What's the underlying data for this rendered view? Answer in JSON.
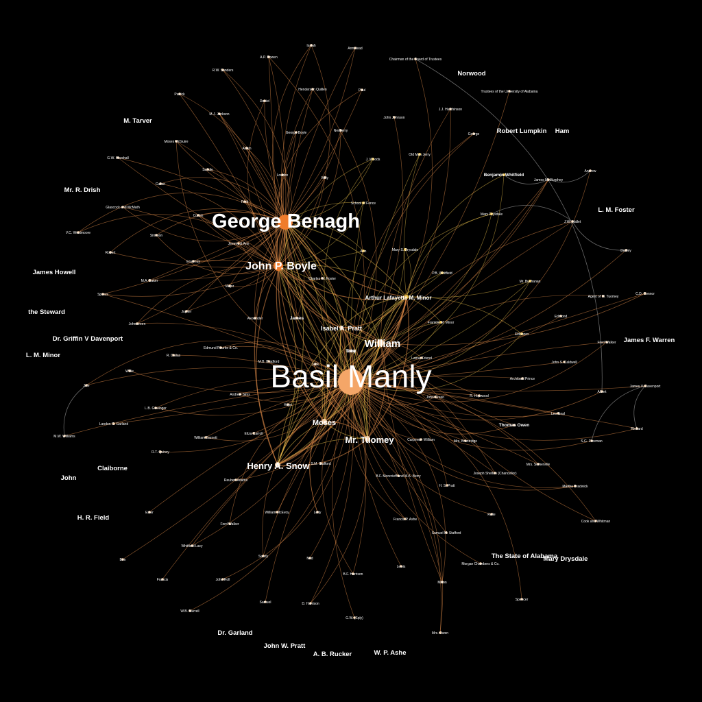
{
  "colors": {
    "background": "#000000",
    "hub": "#f4a668",
    "hub_strong": "#f07c2c",
    "gold": "#f0c24a",
    "edge_orange": "#e8904a",
    "edge_gold": "#e8c04a",
    "edge_gray": "#bbbbbb",
    "node_pale": "#f6d5b0",
    "node_gray": "#cccccc"
  },
  "hubs": [
    {
      "id": "basil_manly",
      "label": "Basil Manly",
      "tier": "xl"
    },
    {
      "id": "george_benagh",
      "label": "George Benagh",
      "tier": "l"
    },
    {
      "id": "john_p_boyle",
      "label": "John P. Boyle",
      "tier": "m"
    },
    {
      "id": "henry_a_snow",
      "label": "Henry A. Snow",
      "tier": "s"
    },
    {
      "id": "mr_tuomey",
      "label": "Mr. Tuomey",
      "tier": "s"
    },
    {
      "id": "william",
      "label": "William",
      "tier": "s"
    },
    {
      "id": "moses",
      "label": "Moses",
      "tier": "xs"
    },
    {
      "id": "isabel_a_pratt",
      "label": "Isabel A. Pratt",
      "tier": "xs"
    },
    {
      "id": "arthur_lafayette_m_minor",
      "label": "Arthur Lafayette M. Minor",
      "tier": "xs"
    }
  ],
  "nodes": [
    {
      "label": "Isaiah"
    },
    {
      "label": "Armstead"
    },
    {
      "label": "Chairman of the Board of Trustees"
    },
    {
      "label": "A.P. Bowen"
    },
    {
      "label": "R.W. Sanders"
    },
    {
      "label": "Patrick"
    },
    {
      "label": "Henderson Quillen"
    },
    {
      "label": "Paul"
    },
    {
      "label": "Daniel"
    },
    {
      "label": "M.J. Jackson"
    },
    {
      "label": "J.J. Hutchinson"
    },
    {
      "label": "John Johnson"
    },
    {
      "label": "George"
    },
    {
      "label": "George Boyle"
    },
    {
      "label": "Nedberry"
    },
    {
      "label": "Moses McGuire"
    },
    {
      "label": "Adam"
    },
    {
      "label": "G.W. Marshall"
    },
    {
      "label": "J. Woods"
    },
    {
      "label": "Old Man Jerry"
    },
    {
      "label": "Sandie"
    },
    {
      "label": "Loudon"
    },
    {
      "label": "Milly"
    },
    {
      "label": "Cullen"
    },
    {
      "label": "School of Fence"
    },
    {
      "label": "Fred"
    },
    {
      "label": "Glascock and McMath"
    },
    {
      "label": "Corbin"
    },
    {
      "label": "V.C. Westmoore"
    },
    {
      "label": "Simmon"
    },
    {
      "label": "Jemmy & Ann"
    },
    {
      "label": "Robert"
    },
    {
      "label": "Erasmus"
    },
    {
      "label": "Ann"
    },
    {
      "label": "M.A. Baker"
    },
    {
      "label": "Major"
    },
    {
      "label": "Spears"
    },
    {
      "label": "Charles W. Foster"
    },
    {
      "label": "Jupiter"
    },
    {
      "label": "Johnstreen"
    },
    {
      "label": "Mary Drysdale"
    },
    {
      "label": "Mary S. Drysdale"
    },
    {
      "label": "J.W. Mallet"
    },
    {
      "label": "Dudley"
    },
    {
      "label": "Benjamin Whitfield"
    },
    {
      "label": "James McMurphey"
    },
    {
      "label": "Andrew"
    },
    {
      "label": "P.B. Whitfield"
    },
    {
      "label": "Mr. Buchanan"
    },
    {
      "label": "Agent of M. Tuomey"
    },
    {
      "label": "C.D. Connor"
    },
    {
      "label": "Franklin M. Minor"
    },
    {
      "label": "Edmond"
    },
    {
      "label": "Eldoboro"
    },
    {
      "label": "Fred Walker"
    },
    {
      "label": "Alexander"
    },
    {
      "label": "James"
    },
    {
      "label": "Edmund Rourke & Co."
    },
    {
      "label": "M.B. Bradford"
    },
    {
      "label": "Jack"
    },
    {
      "label": "Lamar Friend"
    },
    {
      "label": "John S. Caldwell"
    },
    {
      "label": "Archibald Prince"
    },
    {
      "label": "Jule"
    },
    {
      "label": "Willie"
    },
    {
      "label": "R. Dallas"
    },
    {
      "label": "Andrew Sims"
    },
    {
      "label": "Hope"
    },
    {
      "label": "John Green"
    },
    {
      "label": "L.B. Gewinger"
    },
    {
      "label": "R. Hopwood"
    },
    {
      "label": "James V. Davenport"
    },
    {
      "label": "Richard"
    },
    {
      "label": "Landon C. Garland"
    },
    {
      "label": "M.W. Williams"
    },
    {
      "label": "William Barnett"
    },
    {
      "label": "Eliza Carroll"
    },
    {
      "label": "Carpenter William"
    },
    {
      "label": "Mrs. Brantridge"
    },
    {
      "label": "S.G. Freeman"
    },
    {
      "label": "R.T. Quincy"
    },
    {
      "label": "Mrs. Somerville"
    },
    {
      "label": "Reuben Adams"
    },
    {
      "label": "S.M. Stafford"
    },
    {
      "label": "B.F. Moncrieff and M.A. Berry"
    },
    {
      "label": "Joseph Shelton (Chancellor)"
    },
    {
      "label": "H. S. Pratt"
    },
    {
      "label": "Martha Bradwick"
    },
    {
      "label": "Ester"
    },
    {
      "label": "William McEvoy"
    },
    {
      "label": "Letty"
    },
    {
      "label": "Ralie"
    },
    {
      "label": "Ford Walker"
    },
    {
      "label": "Francis P. Ashe"
    },
    {
      "label": "Samuel M. Stafford"
    },
    {
      "label": "Cook and Whitman"
    },
    {
      "label": "Whitfield Lacy"
    },
    {
      "label": "Ben"
    },
    {
      "label": "Francis"
    },
    {
      "label": "Sandy"
    },
    {
      "label": "Ned"
    },
    {
      "label": "Morgan Chambers & Co."
    },
    {
      "label": "B.F. Harrison"
    },
    {
      "label": "Lewis"
    },
    {
      "label": "John Roll"
    },
    {
      "label": "Milton"
    },
    {
      "label": "Spencer"
    },
    {
      "label": "Samuel"
    },
    {
      "label": "D. Harrison"
    },
    {
      "label": "W.B. Murrell"
    },
    {
      "label": "G.W. (Sply)"
    },
    {
      "label": "Mrs. Owen"
    },
    {
      "label": "Trustees of the University of Alabama"
    },
    {
      "label": "Albert"
    },
    {
      "label": "Leo Neal"
    },
    {
      "label": "Thomas Owen"
    },
    {
      "label": "Toby"
    },
    {
      "label": "Dick"
    }
  ],
  "outer_labels": [
    {
      "label": "Norwood"
    },
    {
      "label": "M. Tarver"
    },
    {
      "label": "Robert Lumpkin"
    },
    {
      "label": "Ham"
    },
    {
      "label": "Mr. R. Drish"
    },
    {
      "label": "L. M. Foster"
    },
    {
      "label": "James Howell"
    },
    {
      "label": "the Steward"
    },
    {
      "label": "Dr. Griffin V Davenport"
    },
    {
      "label": "James F. Warren"
    },
    {
      "label": "L. M. Minor"
    },
    {
      "label": "Claiborne"
    },
    {
      "label": "John"
    },
    {
      "label": "H. R. Field"
    },
    {
      "label": "The State of Alabama"
    },
    {
      "label": "Mary Drysdale"
    },
    {
      "label": "Dr. Garland"
    },
    {
      "label": "John W. Pratt"
    },
    {
      "label": "A. B. Rucker"
    },
    {
      "label": "W. P. Ashe"
    }
  ]
}
